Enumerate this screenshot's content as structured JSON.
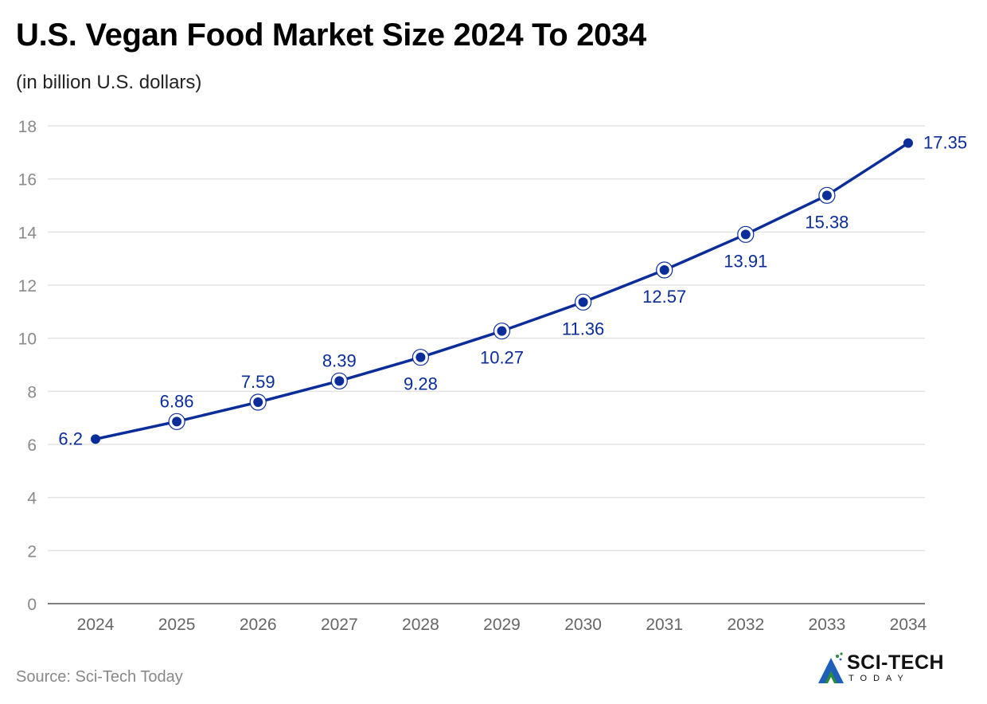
{
  "header": {
    "title": "U.S. Vegan Food Market Size 2024 To 2034",
    "subtitle": "(in billion U.S. dollars)"
  },
  "footer": {
    "source": "Source: Sci-Tech Today",
    "brand_name": "SCI-TECH",
    "brand_tagline": "TODAY"
  },
  "colors": {
    "series": "#0a2d9a",
    "grid": "#e3e3e3",
    "tick_text": "#8a8a8a",
    "axis": "#555555"
  },
  "chart_data": {
    "type": "line",
    "title": "U.S. Vegan Food Market Size 2024 To 2034",
    "subtitle": "(in billion U.S. dollars)",
    "xlabel": "",
    "ylabel": "",
    "categories": [
      "2024",
      "2025",
      "2026",
      "2027",
      "2028",
      "2029",
      "2030",
      "2031",
      "2032",
      "2033",
      "2034"
    ],
    "series": [
      {
        "name": "U.S. Vegan Food Market Size",
        "values": [
          6.2,
          6.86,
          7.59,
          8.39,
          9.28,
          10.27,
          11.36,
          12.57,
          13.91,
          15.38,
          17.35
        ],
        "labels": [
          "6.2",
          "6.86",
          "7.59",
          "8.39",
          "9.28",
          "10.27",
          "11.36",
          "12.57",
          "13.91",
          "15.38",
          "17.35"
        ],
        "label_positions": [
          "left",
          "above",
          "above",
          "above",
          "below",
          "below",
          "below",
          "below",
          "below",
          "below",
          "right"
        ]
      }
    ],
    "ylim": [
      0,
      18
    ],
    "yticks": [
      0,
      2,
      4,
      6,
      8,
      10,
      12,
      14,
      16,
      18
    ],
    "grid": true,
    "legend": "none"
  }
}
